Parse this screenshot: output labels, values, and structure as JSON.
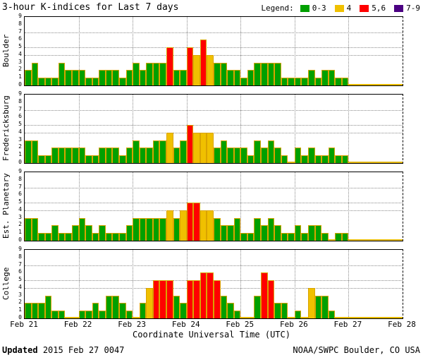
{
  "title": "3-hour K-indices for Last 7 days",
  "legend": {
    "label": "Legend:",
    "items": [
      {
        "label": "0-3",
        "color": "#00a000"
      },
      {
        "label": "4",
        "color": "#f0c000"
      },
      {
        "label": "5,6",
        "color": "#ff0000"
      },
      {
        "label": "7-9",
        "color": "#4b0082"
      }
    ]
  },
  "xlabel": "Coordinate Universal Time (UTC)",
  "footer": {
    "updated_label": "Updated",
    "updated_value": "2015 Feb 27 0047",
    "credit": "NOAA/SWPC Boulder, CO USA"
  },
  "chart_data": {
    "type": "bar",
    "title": "3-hour K-indices for Last 7 days",
    "ylim": [
      0,
      9
    ],
    "y_ticks": [
      0,
      1,
      2,
      3,
      4,
      5,
      6,
      7,
      8,
      9
    ],
    "threshold_gridlines": [
      4,
      5,
      7
    ],
    "grid": "dotted",
    "bars_per_day": 8,
    "x_tick_labels": [
      "Feb 21",
      "Feb 22",
      "Feb 23",
      "Feb 24",
      "Feb 25",
      "Feb 26",
      "Feb 27",
      "Feb 28"
    ],
    "color_rules": [
      {
        "range": "0-3",
        "color": "#00a000"
      },
      {
        "range": "4",
        "color": "#f0c000"
      },
      {
        "range": "5-6",
        "color": "#ff0000"
      },
      {
        "range": "7-9",
        "color": "#4b0082"
      }
    ],
    "series": [
      {
        "name": "Boulder",
        "values": [
          2,
          3,
          1,
          1,
          1,
          3,
          2,
          2,
          2,
          1,
          1,
          2,
          2,
          2,
          1,
          2,
          3,
          2,
          3,
          3,
          3,
          5,
          2,
          2,
          5,
          4,
          6,
          4,
          3,
          3,
          2,
          2,
          1,
          2,
          3,
          3,
          3,
          3,
          1,
          1,
          1,
          1,
          2,
          1,
          2,
          2,
          1,
          1,
          0,
          0,
          0,
          0,
          0,
          0,
          0,
          0
        ]
      },
      {
        "name": "Fredericksburg",
        "values": [
          3,
          3,
          1,
          1,
          2,
          2,
          2,
          2,
          2,
          1,
          1,
          2,
          2,
          2,
          1,
          2,
          3,
          2,
          2,
          3,
          3,
          4,
          2,
          3,
          5,
          4,
          4,
          4,
          2,
          3,
          2,
          2,
          2,
          1,
          3,
          2,
          3,
          2,
          1,
          0,
          2,
          1,
          2,
          1,
          1,
          2,
          1,
          1,
          0,
          0,
          0,
          0,
          0,
          0,
          0,
          0
        ]
      },
      {
        "name": "Est. Planetary",
        "values": [
          3,
          3,
          1,
          1,
          2,
          1,
          1,
          2,
          3,
          2,
          1,
          2,
          1,
          1,
          1,
          2,
          3,
          3,
          3,
          3,
          3,
          4,
          3,
          4,
          5,
          5,
          4,
          4,
          3,
          2,
          2,
          3,
          1,
          1,
          3,
          2,
          3,
          2,
          1,
          1,
          2,
          1,
          2,
          2,
          1,
          0,
          1,
          1,
          0,
          0,
          0,
          0,
          0,
          0,
          0,
          0
        ]
      },
      {
        "name": "College",
        "values": [
          2,
          2,
          2,
          3,
          1,
          1,
          0,
          0,
          1,
          1,
          2,
          1,
          3,
          3,
          2,
          1,
          0,
          2,
          4,
          5,
          5,
          5,
          3,
          2,
          5,
          5,
          6,
          6,
          5,
          3,
          2,
          1,
          0,
          0,
          3,
          6,
          5,
          2,
          2,
          0,
          1,
          0,
          4,
          3,
          3,
          1,
          0,
          0,
          0,
          0,
          0,
          0,
          0,
          0,
          0,
          0
        ]
      }
    ]
  }
}
